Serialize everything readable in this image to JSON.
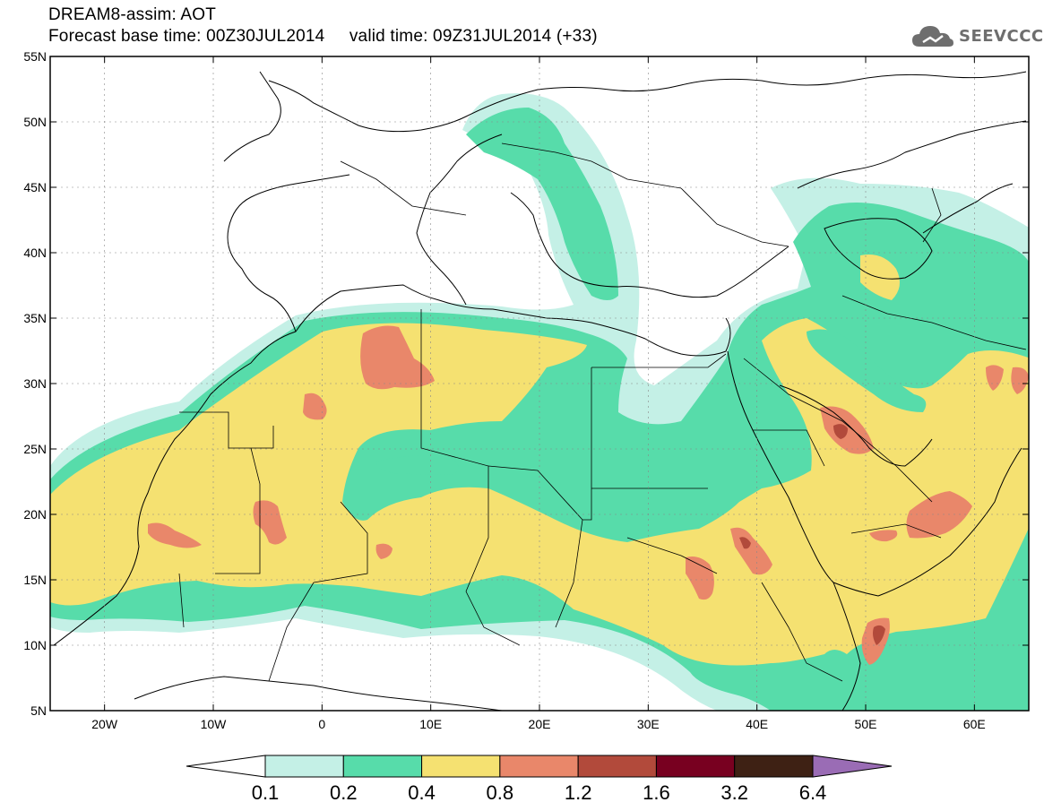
{
  "header": {
    "title_line1": "DREAM8-assim: AOT",
    "title_line2": "Forecast base time: 00Z30JUL2014     valid time: 09Z31JUL2014 (+33)",
    "logo_text": "SEEVCCC"
  },
  "map": {
    "variable": "AOT",
    "lat_range": [
      5,
      55
    ],
    "lon_range": [
      -25,
      65
    ],
    "lat_labels": [
      "5N",
      "10N",
      "15N",
      "20N",
      "25N",
      "30N",
      "35N",
      "40N",
      "45N",
      "50N",
      "55N"
    ],
    "lat_values": [
      5,
      10,
      15,
      20,
      25,
      30,
      35,
      40,
      45,
      50,
      55
    ],
    "lon_labels": [
      "20W",
      "10W",
      "0",
      "10E",
      "20E",
      "30E",
      "40E",
      "50E",
      "60E"
    ],
    "lon_values": [
      -20,
      -10,
      0,
      10,
      20,
      30,
      40,
      50,
      60
    ]
  },
  "legend": {
    "levels": [
      "0.1",
      "0.2",
      "0.4",
      "0.8",
      "1.2",
      "1.6",
      "3.2",
      "6.4"
    ],
    "colors": [
      "#ffffff",
      "#c4f0e6",
      "#57dcaa",
      "#f5e171",
      "#e9876a",
      "#b24a3b",
      "#780020",
      "#3e2114",
      "#9a6cb5"
    ]
  },
  "colors": {
    "c01": "#c4f0e6",
    "c02": "#57dcaa",
    "c04": "#f5e171",
    "c08": "#e9876a",
    "c12": "#b24a3b",
    "coast": "#000000"
  }
}
